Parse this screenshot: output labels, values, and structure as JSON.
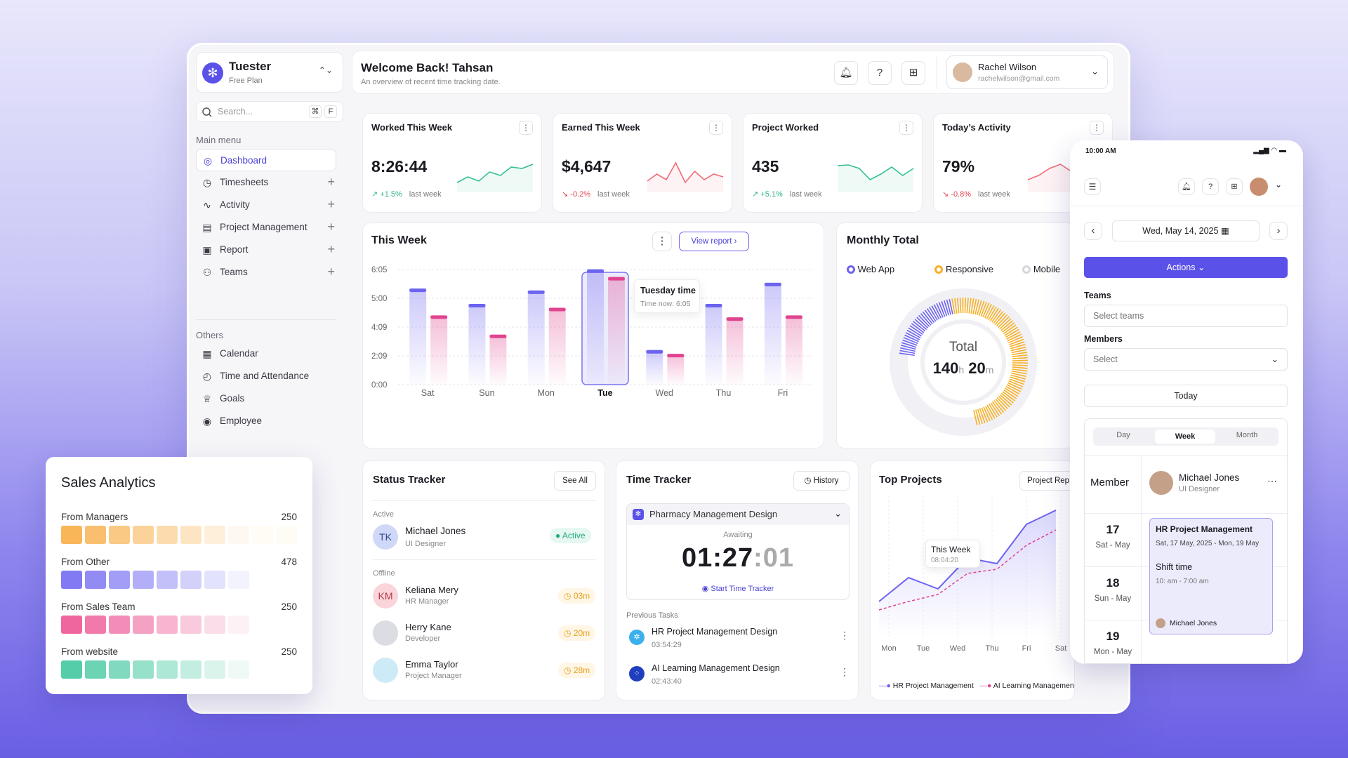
{
  "brand": {
    "name": "Tuester",
    "plan": "Free Plan"
  },
  "search": {
    "placeholder": "Search...",
    "key1": "⌘",
    "key2": "F"
  },
  "sidebar": {
    "main_label": "Main menu",
    "items": [
      {
        "label": "Dashboard",
        "icon": "dashboard-icon"
      },
      {
        "label": "Timesheets",
        "icon": "clock-icon"
      },
      {
        "label": "Activity",
        "icon": "activity-icon"
      },
      {
        "label": "Project Management",
        "icon": "folder-icon"
      },
      {
        "label": "Report",
        "icon": "report-icon"
      },
      {
        "label": "Teams",
        "icon": "users-icon"
      }
    ],
    "others_label": "Others",
    "others": [
      {
        "label": "Calendar",
        "icon": "calendar-icon"
      },
      {
        "label": "Time and Attendance",
        "icon": "attendance-icon"
      },
      {
        "label": "Goals",
        "icon": "trophy-icon"
      },
      {
        "label": "Employee",
        "icon": "employee-icon"
      }
    ]
  },
  "header": {
    "title": "Welcome Back! Tahsan",
    "subtitle": "An overview of recent time tracking date."
  },
  "user": {
    "name": "Rachel Wilson",
    "email": "rachelwilson@gmail.com"
  },
  "stats": [
    {
      "title": "Worked This Week",
      "value": "8:26:44",
      "delta": "+1.5%",
      "dir": "up",
      "note": "last week"
    },
    {
      "title": "Earned This Week",
      "value": "$4,647",
      "delta": "-0.2%",
      "dir": "down",
      "note": "last week"
    },
    {
      "title": "Project Worked",
      "value": "435",
      "delta": "+5.1%",
      "dir": "up",
      "note": "last week"
    },
    {
      "title": "Today’s Activity",
      "value": "79%",
      "delta": "-0.8%",
      "dir": "down",
      "note": "last week"
    }
  ],
  "this_week": {
    "title": "This Week",
    "button": "View report",
    "tooltip_title": "Tuesday time",
    "tooltip_sub": "Time now: 6:05"
  },
  "chart_data": {
    "type": "bar",
    "categories": [
      "Sat",
      "Sun",
      "Mon",
      "Tue",
      "Wed",
      "Thu",
      "Fri"
    ],
    "y_ticks": [
      "6:05",
      "5:00",
      "4:09",
      "2:09",
      "0:00"
    ],
    "series": [
      {
        "values": [
          5.0,
          4.2,
          4.9,
          6.0,
          1.8,
          4.2,
          5.3
        ]
      },
      {
        "values": [
          3.6,
          2.6,
          4.0,
          5.6,
          1.6,
          3.5,
          3.6
        ]
      }
    ],
    "ylim": [
      0,
      6.5
    ],
    "highlight": "Tue",
    "colors": [
      "#6c63f0",
      "#e0448f"
    ]
  },
  "monthly": {
    "title": "Monthly Total",
    "legend": [
      "Web App",
      "Responsive",
      "Mobile"
    ],
    "total_label": "Total",
    "hours": "140",
    "h": "h",
    "mins": "20",
    "m": "m",
    "share": {
      "web_app": 0.2,
      "responsive": 0.5,
      "mobile": 0.3
    }
  },
  "status": {
    "title": "Status Tracker",
    "button": "See All",
    "active_label": "Active",
    "offline_label": "Offline",
    "active": {
      "initials": "TK",
      "name": "Michael Jones",
      "role": "UI Designer",
      "badge": "Active"
    },
    "offline": [
      {
        "initials": "KM",
        "name": "Keliana Mery",
        "role": "HR Manager",
        "time": "03m"
      },
      {
        "initials": "",
        "name": "Herry Kane",
        "role": "Developer",
        "time": "20m"
      },
      {
        "initials": "",
        "name": "Emma Taylor",
        "role": "Project Manager",
        "time": "28m"
      }
    ]
  },
  "time_tracker": {
    "title": "Time Tracker",
    "button": "History",
    "project": "Pharmacy Management Design",
    "state": "Awaiting",
    "time_main": "01:27",
    "time_sec": ":01",
    "start": "Start Time Tracker",
    "prev_label": "Previous Tasks",
    "tasks": [
      {
        "name": "HR Project Management Design",
        "time": "03:54:29"
      },
      {
        "name": "AI Learning Management Design",
        "time": "02:43:40"
      }
    ]
  },
  "top_projects": {
    "title": "Top Projects",
    "button": "Project Rep",
    "tooltip_title": "This Week",
    "tooltip_val": "08:04:20",
    "x": [
      "Mon",
      "Tue",
      "Wed",
      "Thu",
      "Fri",
      "Sat"
    ],
    "legend": [
      "HR Project Management",
      "AI Learning Management"
    ]
  },
  "sales": {
    "title": "Sales Analytics",
    "rows": [
      {
        "label": "From Managers",
        "value": "250",
        "color": "#f7a93b"
      },
      {
        "label": "From Other",
        "value": "478",
        "color": "#6c63f0"
      },
      {
        "label": "From Sales Team",
        "value": "250",
        "color": "#ec4b8e"
      },
      {
        "label": "From website",
        "value": "250",
        "color": "#38c49a"
      }
    ]
  },
  "mobile": {
    "time": "10:00 AM",
    "date": "Wed, May 14, 2025",
    "actions": "Actions",
    "teams_label": "Teams",
    "teams_ph": "Select teams",
    "members_label": "Members",
    "members_ph": "Select",
    "today": "Today",
    "tabs": [
      "Day",
      "Week",
      "Month"
    ],
    "member_label": "Member",
    "member_name": "Michael Jones",
    "member_role": "UI Designer",
    "days": [
      {
        "n": "17",
        "d": "Sat - May"
      },
      {
        "n": "18",
        "d": "Sun - May"
      },
      {
        "n": "19",
        "d": "Mon - May"
      }
    ],
    "event": {
      "title": "HR Project Management",
      "range": "Sat, 17 May, 2025 - Mon, 19 May",
      "shift": "Shift time",
      "shift_time": "10: am - 7:00 am",
      "person": "Michael Jones"
    }
  }
}
